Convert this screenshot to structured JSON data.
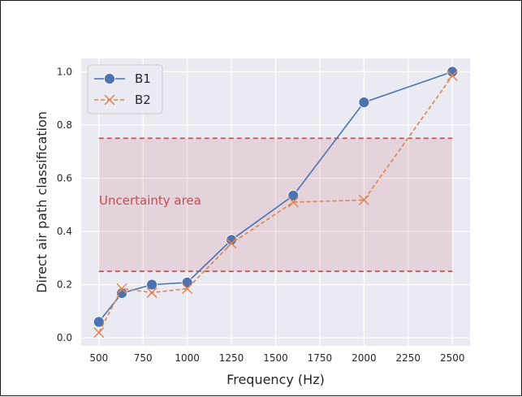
{
  "chart_data": {
    "type": "line",
    "title": "",
    "xlabel": "Frequency (Hz)",
    "ylabel": "Direct air path classification",
    "xlim": [
      400,
      2600
    ],
    "ylim": [
      -0.03,
      1.05
    ],
    "grid": true,
    "legend_position": "top-left",
    "x_ticks": [
      500,
      750,
      1000,
      1250,
      1500,
      1750,
      2000,
      2250,
      2500
    ],
    "y_ticks": [
      0.0,
      0.2,
      0.4,
      0.6,
      0.8,
      1.0
    ],
    "x_tick_labels": [
      "500",
      "750",
      "1000",
      "1250",
      "1500",
      "1750",
      "2000",
      "2250",
      "2500"
    ],
    "y_tick_labels": [
      "0.0",
      "0.2",
      "0.4",
      "0.6",
      "0.8",
      "1.0"
    ],
    "series": [
      {
        "name": "B1",
        "color": "#4c72b0",
        "line_style": "solid",
        "marker": "circle",
        "x": [
          500,
          630,
          800,
          1000,
          1250,
          1600,
          2000,
          2500
        ],
        "y": [
          0.06,
          0.168,
          0.2,
          0.208,
          0.368,
          0.535,
          0.885,
          1.0
        ]
      },
      {
        "name": "B2",
        "color": "#dd8452",
        "line_style": "dashed",
        "marker": "x",
        "x": [
          500,
          630,
          800,
          1000,
          1250,
          1600,
          2000,
          2500
        ],
        "y": [
          0.02,
          0.185,
          0.17,
          0.185,
          0.355,
          0.51,
          0.518,
          0.985
        ]
      }
    ],
    "uncertainty_band": {
      "label": "Uncertainty area",
      "lower": 0.25,
      "upper": 0.75,
      "x_range": [
        500,
        2500
      ],
      "color": "#c44e52"
    }
  }
}
